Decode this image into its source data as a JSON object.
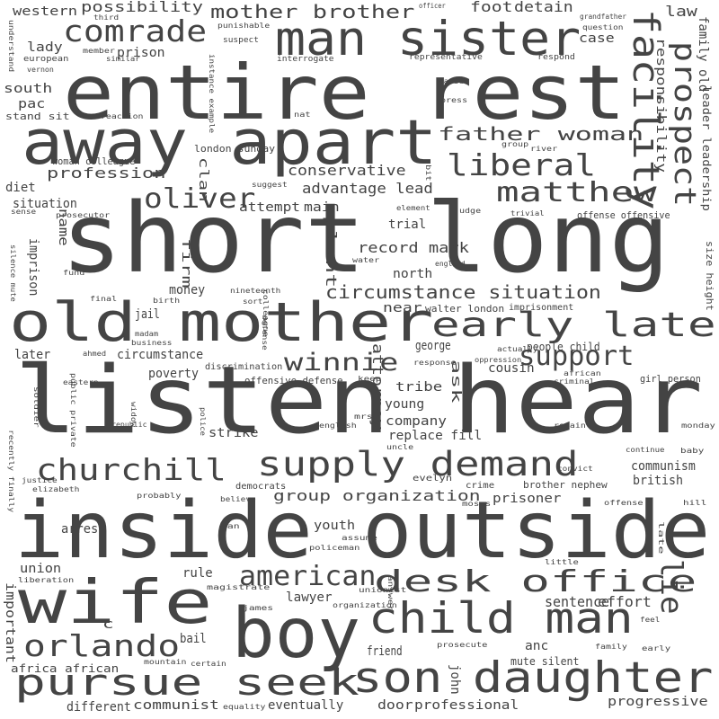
{
  "colors": [
    "#440154",
    "#482878",
    "#3e4a89",
    "#31688e",
    "#26828e",
    "#1f9e89",
    "#35b779",
    "#6ece58",
    "#b5de2b",
    "#fde725"
  ],
  "words": [
    {
      "text": "short long",
      "color": 2
    },
    {
      "text": "listen hear",
      "color": 0
    },
    {
      "text": "inside outside",
      "color": 4
    },
    {
      "text": "entire rest",
      "color": 3
    },
    {
      "text": "away apart",
      "color": 2
    },
    {
      "text": "old mother",
      "color": 1
    },
    {
      "text": "wife",
      "color": 5
    },
    {
      "text": "boy",
      "color": 1
    },
    {
      "text": "man sister",
      "color": 6
    },
    {
      "text": "child man",
      "color": 3
    },
    {
      "text": "son daughter",
      "color": 7
    },
    {
      "text": "pursue seek",
      "color": 8
    },
    {
      "text": "supply demand",
      "color": 7
    },
    {
      "text": "early late",
      "color": 2
    },
    {
      "text": "desk office",
      "color": 1
    },
    {
      "text": "american",
      "color": 2
    },
    {
      "text": "churchill",
      "color": 2
    },
    {
      "text": "orlando",
      "color": 5
    },
    {
      "text": "comrade",
      "color": 4
    },
    {
      "text": "matthew",
      "color": 7
    },
    {
      "text": "oliver",
      "color": 7
    },
    {
      "text": "facility",
      "color": 5
    },
    {
      "text": "prospect",
      "color": 3
    },
    {
      "text": "liberal",
      "color": 2
    },
    {
      "text": "support",
      "color": 2
    },
    {
      "text": "winnie",
      "color": 6
    },
    {
      "text": "lie",
      "color": 4
    },
    {
      "text": "mother brother",
      "color": 0
    },
    {
      "text": "father woman",
      "color": 4
    },
    {
      "text": "circumstance situation",
      "color": 5
    },
    {
      "text": "group organization",
      "color": 1
    },
    {
      "text": "sentence",
      "color": 1
    },
    {
      "text": "effort",
      "color": 2
    },
    {
      "text": "record mark",
      "color": 8
    },
    {
      "text": "conservative",
      "color": 7
    },
    {
      "text": "advantage lead",
      "color": 3
    },
    {
      "text": "profession",
      "color": 5
    },
    {
      "text": "possibility",
      "color": 8
    },
    {
      "text": "responsibility",
      "color": 1
    },
    {
      "text": "leader leadership",
      "color": 5
    },
    {
      "text": "family old",
      "color": 1
    },
    {
      "text": "law",
      "color": 1
    },
    {
      "text": "foot",
      "color": 1
    },
    {
      "text": "detain",
      "color": 1
    },
    {
      "text": "western",
      "color": 3
    },
    {
      "text": "lady",
      "color": 8
    },
    {
      "text": "prison",
      "color": 1
    },
    {
      "text": "case",
      "color": 1
    },
    {
      "text": "attorney",
      "color": 4
    },
    {
      "text": "near",
      "color": 3
    },
    {
      "text": "south",
      "color": 1
    },
    {
      "text": "pac",
      "color": 5
    },
    {
      "text": "situation",
      "color": 3
    },
    {
      "text": "diet",
      "color": 1
    },
    {
      "text": "attempt",
      "color": 0
    },
    {
      "text": "main",
      "color": 0
    },
    {
      "text": "trial",
      "color": 3
    },
    {
      "text": "north",
      "color": 4
    },
    {
      "text": "plant",
      "color": 3
    },
    {
      "text": "firm",
      "color": 1
    },
    {
      "text": "imprison",
      "color": 1
    },
    {
      "text": "name",
      "color": 2
    },
    {
      "text": "clan",
      "color": 1
    },
    {
      "text": "money",
      "color": 8
    },
    {
      "text": "jail",
      "color": 2
    },
    {
      "text": "later",
      "color": 1
    },
    {
      "text": "circumstance",
      "color": 2
    },
    {
      "text": "poverty",
      "color": 6
    },
    {
      "text": "george",
      "color": 8
    },
    {
      "text": "cousin",
      "color": 4
    },
    {
      "text": "tribe",
      "color": 1
    },
    {
      "text": "ask",
      "color": 4
    },
    {
      "text": "young",
      "color": 5
    },
    {
      "text": "company",
      "color": 0
    },
    {
      "text": "replace fill",
      "color": 6
    },
    {
      "text": "strike",
      "color": 1
    },
    {
      "text": "arrest",
      "color": 3
    },
    {
      "text": "british",
      "color": 1
    },
    {
      "text": "communism",
      "color": 1
    },
    {
      "text": "prisoner",
      "color": 1
    },
    {
      "text": "youth",
      "color": 3
    },
    {
      "text": "union",
      "color": 7
    },
    {
      "text": "rule",
      "color": 3
    },
    {
      "text": "lawyer",
      "color": 8
    },
    {
      "text": "bail",
      "color": 1
    },
    {
      "text": "friend",
      "color": 5
    },
    {
      "text": "anc",
      "color": 4
    },
    {
      "text": "john",
      "color": 3
    },
    {
      "text": "mute silent",
      "color": 1
    },
    {
      "text": "different",
      "color": 3
    },
    {
      "text": "communist",
      "color": 2
    },
    {
      "text": "eventually",
      "color": 1
    },
    {
      "text": "door",
      "color": 1
    },
    {
      "text": "professional",
      "color": 1
    },
    {
      "text": "progressive",
      "color": 5
    },
    {
      "text": "important",
      "color": 6
    },
    {
      "text": "africa african",
      "color": 5
    },
    {
      "text": "c",
      "color": 8
    },
    {
      "text": "people child",
      "color": 3
    },
    {
      "text": "offense offensive",
      "color": 2
    },
    {
      "text": "size height",
      "color": 1
    },
    {
      "text": "stand sit",
      "color": 4
    },
    {
      "text": "woman colleague",
      "color": 4
    },
    {
      "text": "london sunday",
      "color": 8
    },
    {
      "text": "walter london",
      "color": 5
    },
    {
      "text": "imprisonment",
      "color": 2
    },
    {
      "text": "offensive defense",
      "color": 2
    },
    {
      "text": "discrimination",
      "color": 3
    },
    {
      "text": "girl person",
      "color": 3
    },
    {
      "text": "brother nephew",
      "color": 4
    },
    {
      "text": "evelyn",
      "color": 1
    },
    {
      "text": "crime",
      "color": 1
    },
    {
      "text": "democrats",
      "color": 1
    },
    {
      "text": "third",
      "color": 8
    },
    {
      "text": "officer",
      "color": 8
    },
    {
      "text": "grandfather",
      "color": 8
    },
    {
      "text": "question",
      "color": 8
    },
    {
      "text": "respond",
      "color": 2
    },
    {
      "text": "representative",
      "color": 3
    },
    {
      "text": "punishable",
      "color": 8
    },
    {
      "text": "suspect",
      "color": 1
    },
    {
      "text": "member",
      "color": 1
    },
    {
      "text": "similar",
      "color": 8
    },
    {
      "text": "european",
      "color": 1
    },
    {
      "text": "vernon",
      "color": 8
    },
    {
      "text": "understand",
      "color": 4
    },
    {
      "text": "interrogate",
      "color": 1
    },
    {
      "text": "david",
      "color": 3
    },
    {
      "text": "press",
      "color": 5
    },
    {
      "text": "reaction",
      "color": 5
    },
    {
      "text": "nat",
      "color": 3
    },
    {
      "text": "instance example",
      "color": 4
    },
    {
      "text": "element",
      "color": 8
    },
    {
      "text": "bit",
      "color": 8
    },
    {
      "text": "judge",
      "color": 1
    },
    {
      "text": "group",
      "color": 8
    },
    {
      "text": "river",
      "color": 4
    },
    {
      "text": "suggest",
      "color": 3
    },
    {
      "text": "sense",
      "color": 1
    },
    {
      "text": "prosecutor",
      "color": 1
    },
    {
      "text": "trivial",
      "color": 8
    },
    {
      "text": "fund",
      "color": 1
    },
    {
      "text": "colleague",
      "color": 8
    },
    {
      "text": "water",
      "color": 1
    },
    {
      "text": "england",
      "color": 5
    },
    {
      "text": "silence mute",
      "color": 8
    },
    {
      "text": "final",
      "color": 5
    },
    {
      "text": "birth",
      "color": 1
    },
    {
      "text": "nineteenth",
      "color": 1
    },
    {
      "text": "sort",
      "color": 1
    },
    {
      "text": "madam",
      "color": 4
    },
    {
      "text": "business",
      "color": 5
    },
    {
      "text": "defense",
      "color": 5
    },
    {
      "text": "ahmed",
      "color": 1
    },
    {
      "text": "actually",
      "color": 8
    },
    {
      "text": "oppression",
      "color": 2
    },
    {
      "text": "response",
      "color": 8
    },
    {
      "text": "eastern",
      "color": 2
    },
    {
      "text": "keep",
      "color": 8
    },
    {
      "text": "african",
      "color": 1
    },
    {
      "text": "criminal",
      "color": 8
    },
    {
      "text": "soldier",
      "color": 5
    },
    {
      "text": "public private",
      "color": 1
    },
    {
      "text": "widow",
      "color": 5
    },
    {
      "text": "republic",
      "color": 1
    },
    {
      "text": "police",
      "color": 8
    },
    {
      "text": "english",
      "color": 8
    },
    {
      "text": "mrs",
      "color": 8
    },
    {
      "text": "uncle",
      "color": 8
    },
    {
      "text": "remain",
      "color": 8
    },
    {
      "text": "monday",
      "color": 8
    },
    {
      "text": "continue",
      "color": 5
    },
    {
      "text": "baby",
      "color": 2
    },
    {
      "text": "convict",
      "color": 8
    },
    {
      "text": "recently finally",
      "color": 5
    },
    {
      "text": "justice",
      "color": 1
    },
    {
      "text": "elizabeth",
      "color": 2
    },
    {
      "text": "probably",
      "color": 1
    },
    {
      "text": "believe",
      "color": 8
    },
    {
      "text": "moses",
      "color": 8
    },
    {
      "text": "offense",
      "color": 4
    },
    {
      "text": "hill",
      "color": 8
    },
    {
      "text": "jan",
      "color": 1
    },
    {
      "text": "assume",
      "color": 1
    },
    {
      "text": "policeman",
      "color": 5
    },
    {
      "text": "late",
      "color": 2
    },
    {
      "text": "little",
      "color": 5
    },
    {
      "text": "liberation",
      "color": 5
    },
    {
      "text": "magistrate",
      "color": 3
    },
    {
      "text": "unionist",
      "color": 1
    },
    {
      "text": "answer",
      "color": 3
    },
    {
      "text": "james",
      "color": 4
    },
    {
      "text": "organization",
      "color": 8
    },
    {
      "text": "feel",
      "color": 1
    },
    {
      "text": "prosecute",
      "color": 7
    },
    {
      "text": "family",
      "color": 5
    },
    {
      "text": "early",
      "color": 1
    },
    {
      "text": "mountain",
      "color": 5
    },
    {
      "text": "certain",
      "color": 8
    },
    {
      "text": "equality",
      "color": 8
    }
  ]
}
